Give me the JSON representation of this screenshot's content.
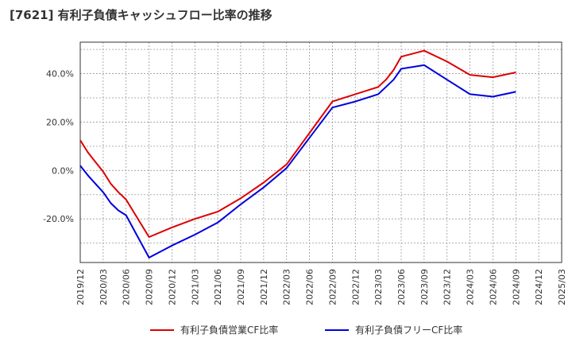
{
  "chart_data": {
    "type": "line",
    "title": "[7621]  有利子負債キャッシュフロー比率の推移",
    "xlabel": "",
    "ylabel": "",
    "x_ticks": [
      "2019/12",
      "2020/03",
      "2020/06",
      "2020/09",
      "2020/12",
      "2021/03",
      "2021/06",
      "2021/09",
      "2021/12",
      "2022/03",
      "2022/06",
      "2022/09",
      "2022/12",
      "2023/03",
      "2023/06",
      "2023/09",
      "2023/12",
      "2024/03",
      "2024/06",
      "2024/09",
      "2024/12",
      "2025/03"
    ],
    "y_ticks": [
      {
        "value": -20,
        "label": "-20.0%"
      },
      {
        "value": 0,
        "label": "0.0%"
      },
      {
        "value": 20,
        "label": "20.0%"
      },
      {
        "value": 40,
        "label": "40.0%"
      }
    ],
    "ylim": [
      -38,
      53
    ],
    "grid": true,
    "legend_position": "bottom",
    "series": [
      {
        "name": "有利子負債営業CF比率",
        "color": "#dd0000",
        "points": [
          [
            "2019/12",
            12.5
          ],
          [
            "2020/01",
            7.5
          ],
          [
            "2020/02",
            3.5
          ],
          [
            "2020/03",
            -0.5
          ],
          [
            "2020/04",
            -5.5
          ],
          [
            "2020/05",
            -9.0
          ],
          [
            "2020/06",
            -12.0
          ],
          [
            "2020/09",
            -27.5
          ],
          [
            "2020/12",
            -23.5
          ],
          [
            "2021/03",
            -20.0
          ],
          [
            "2021/06",
            -17.0
          ],
          [
            "2021/09",
            -11.5
          ],
          [
            "2021/12",
            -5.0
          ],
          [
            "2022/03",
            2.5
          ],
          [
            "2022/06",
            15.5
          ],
          [
            "2022/09",
            28.5
          ],
          [
            "2022/12",
            31.5
          ],
          [
            "2023/03",
            34.5
          ],
          [
            "2023/04",
            37.5
          ],
          [
            "2023/05",
            41.5
          ],
          [
            "2023/06",
            47.0
          ],
          [
            "2023/09",
            49.5
          ],
          [
            "2023/12",
            45.0
          ],
          [
            "2024/03",
            39.5
          ],
          [
            "2024/06",
            38.5
          ],
          [
            "2024/09",
            40.5
          ]
        ]
      },
      {
        "name": "有利子負債フリーCF比率",
        "color": "#0000dd",
        "points": [
          [
            "2019/12",
            2.0
          ],
          [
            "2020/01",
            -2.0
          ],
          [
            "2020/02",
            -5.5
          ],
          [
            "2020/03",
            -9.0
          ],
          [
            "2020/04",
            -13.5
          ],
          [
            "2020/05",
            -16.5
          ],
          [
            "2020/06",
            -18.5
          ],
          [
            "2020/09",
            -36.0
          ],
          [
            "2020/12",
            -31.0
          ],
          [
            "2021/03",
            -26.5
          ],
          [
            "2021/06",
            -21.5
          ],
          [
            "2021/09",
            -14.0
          ],
          [
            "2021/12",
            -7.0
          ],
          [
            "2022/03",
            1.0
          ],
          [
            "2022/06",
            13.5
          ],
          [
            "2022/09",
            26.0
          ],
          [
            "2022/12",
            28.5
          ],
          [
            "2023/03",
            31.5
          ],
          [
            "2023/04",
            34.5
          ],
          [
            "2023/05",
            37.5
          ],
          [
            "2023/06",
            42.0
          ],
          [
            "2023/09",
            43.5
          ],
          [
            "2023/12",
            37.5
          ],
          [
            "2024/03",
            31.5
          ],
          [
            "2024/06",
            30.5
          ],
          [
            "2024/09",
            32.5
          ]
        ]
      }
    ]
  }
}
